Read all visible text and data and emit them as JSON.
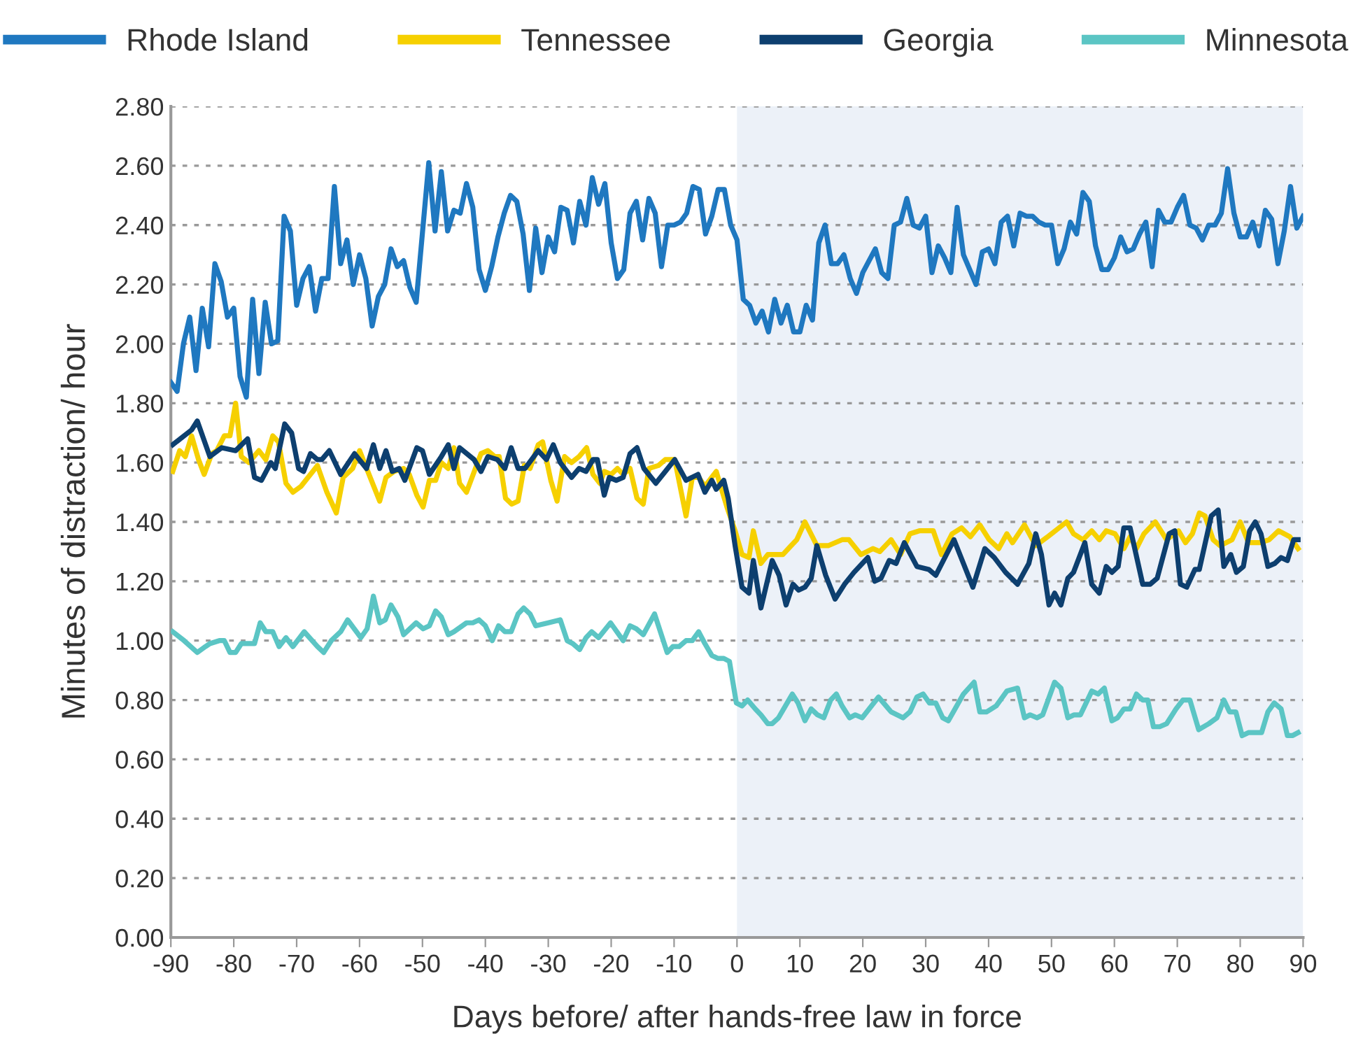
{
  "chart_data": {
    "type": "line",
    "xlabel": "Days before/ after hands-free law in force",
    "ylabel": "Minutes of distraction/ hour",
    "xlim": [
      -90,
      90
    ],
    "xticks": [
      -90,
      -80,
      -70,
      -60,
      -50,
      -40,
      -30,
      -20,
      -10,
      0,
      10,
      20,
      30,
      40,
      50,
      60,
      70,
      80,
      90
    ],
    "ylim": [
      0,
      2.8
    ],
    "yticks": [
      {
        "value": 0,
        "label": "0.00"
      },
      {
        "value": 0.2,
        "label": "0.20"
      },
      {
        "value": 0.4,
        "label": "0.40"
      },
      {
        "value": 0.6,
        "label": "0.60"
      },
      {
        "value": 0.8,
        "label": "0.80"
      },
      {
        "value": 1.0,
        "label": "1.00"
      },
      {
        "value": 1.2,
        "label": "1.20"
      },
      {
        "value": 1.4,
        "label": "1.40"
      },
      {
        "value": 1.6,
        "label": "1.60"
      },
      {
        "value": 1.8,
        "label": "1.80"
      },
      {
        "value": 2.0,
        "label": "2.00"
      },
      {
        "value": 2.2,
        "label": "2.20"
      },
      {
        "value": 2.4,
        "label": "2.40"
      },
      {
        "value": 2.6,
        "label": "2.60"
      },
      {
        "value": 2.8,
        "label": "2.80"
      }
    ],
    "grid": "y",
    "legend": "top",
    "marker": "none",
    "line_style": "solid",
    "bands": [
      {
        "axis": "x",
        "from": 0,
        "to": 90,
        "color": "#ecf1f8"
      }
    ],
    "series": [
      {
        "name": "Rhode Island",
        "color": "#1f78c0",
        "x": [
          -90,
          -89,
          -88,
          -87,
          -86,
          -85,
          -84,
          -83,
          -82,
          -81,
          -80,
          -79,
          -78,
          -77,
          -76,
          -75,
          -74,
          -73,
          -72,
          -71,
          -70,
          -69,
          -68,
          -67,
          -66,
          -65,
          -64,
          -63,
          -62,
          -61,
          -60,
          -59,
          -58,
          -57,
          -56,
          -55,
          -54,
          -53,
          -52,
          -51,
          -49,
          -48,
          -47,
          -46,
          -45,
          -44,
          -43,
          -42,
          -41,
          -40,
          -39,
          -38,
          -37,
          -36,
          -35,
          -34,
          -33,
          -32,
          -31,
          -30,
          -29,
          -28,
          -27,
          -26,
          -25,
          -24,
          -23,
          -22,
          -21,
          -20,
          -19,
          -18,
          -17,
          -16,
          -15,
          -14,
          -13,
          -12,
          -11,
          -10,
          -9,
          -8,
          -7,
          -6,
          -5,
          -4,
          -3,
          -2,
          -1,
          0,
          1,
          2,
          3,
          4,
          5,
          6,
          7,
          8,
          9,
          10,
          11,
          12,
          13,
          14,
          15,
          16,
          17,
          18,
          19,
          20,
          21,
          22,
          23,
          24,
          25,
          26,
          27,
          28,
          29,
          30,
          31,
          32,
          33,
          34,
          35,
          36,
          37,
          38,
          39,
          40,
          41,
          42,
          43,
          44,
          45,
          46,
          47,
          48,
          49,
          50,
          51,
          52,
          53,
          54,
          55,
          56,
          57,
          58,
          59,
          60,
          61,
          62,
          63,
          64,
          65,
          66,
          67,
          68,
          69,
          70,
          71,
          72,
          73,
          74,
          75,
          76,
          77,
          78,
          79,
          80,
          81,
          82,
          83,
          84,
          85,
          86,
          87,
          88,
          89,
          90
        ],
        "values": [
          1.87,
          1.84,
          2.0,
          2.09,
          1.91,
          2.12,
          1.99,
          2.27,
          2.21,
          2.09,
          2.12,
          1.89,
          1.82,
          2.15,
          1.9,
          2.14,
          2.0,
          2.01,
          2.43,
          2.38,
          2.13,
          2.22,
          2.26,
          2.11,
          2.22,
          2.22,
          2.53,
          2.27,
          2.35,
          2.2,
          2.3,
          2.22,
          2.06,
          2.16,
          2.2,
          2.32,
          2.26,
          2.28,
          2.19,
          2.14,
          2.61,
          2.38,
          2.58,
          2.38,
          2.45,
          2.44,
          2.54,
          2.46,
          2.25,
          2.18,
          2.26,
          2.36,
          2.44,
          2.5,
          2.48,
          2.37,
          2.18,
          2.39,
          2.24,
          2.36,
          2.31,
          2.46,
          2.45,
          2.34,
          2.48,
          2.4,
          2.56,
          2.47,
          2.54,
          2.34,
          2.22,
          2.25,
          2.44,
          2.48,
          2.35,
          2.49,
          2.44,
          2.26,
          2.4,
          2.4,
          2.41,
          2.44,
          2.53,
          2.52,
          2.37,
          2.43,
          2.52,
          2.52,
          2.4,
          2.35,
          2.15,
          2.13,
          2.07,
          2.11,
          2.04,
          2.15,
          2.07,
          2.13,
          2.04,
          2.04,
          2.13,
          2.08,
          2.34,
          2.4,
          2.27,
          2.27,
          2.3,
          2.22,
          2.17,
          2.24,
          2.28,
          2.32,
          2.24,
          2.22,
          2.4,
          2.41,
          2.49,
          2.4,
          2.39,
          2.43,
          2.24,
          2.33,
          2.29,
          2.24,
          2.46,
          2.3,
          2.25,
          2.2,
          2.31,
          2.32,
          2.27,
          2.41,
          2.43,
          2.33,
          2.44,
          2.43,
          2.43,
          2.41,
          2.4,
          2.4,
          2.27,
          2.32,
          2.41,
          2.37,
          2.51,
          2.48,
          2.33,
          2.25,
          2.25,
          2.29,
          2.36,
          2.31,
          2.32,
          2.37,
          2.41,
          2.26,
          2.45,
          2.41,
          2.41,
          2.46,
          2.5,
          2.4,
          2.39,
          2.35,
          2.4,
          2.4,
          2.44,
          2.59,
          2.44,
          2.36,
          2.36,
          2.41,
          2.33,
          2.45,
          2.42,
          2.27,
          2.38,
          2.53,
          2.39,
          2.43
        ]
      },
      {
        "name": "Tennessee",
        "color": "#f6d000",
        "x": [
          -89.7,
          -88.6,
          -87.7,
          -86.7,
          -85.6,
          -84.7,
          -83.5,
          -82.7,
          -81.5,
          -80.6,
          -79.7,
          -78.8,
          -77.6,
          -76.0,
          -74.9,
          -73.8,
          -72.9,
          -71.7,
          -70.6,
          -69.3,
          -66.7,
          -65.2,
          -63.7,
          -62.6,
          -61.1,
          -60.0,
          -58.5,
          -56.8,
          -55.8,
          -54.5,
          -53.0,
          -52.1,
          -50.9,
          -49.9,
          -48.9,
          -47.9,
          -47.0,
          -45.9,
          -45.0,
          -44.1,
          -43.0,
          -40.7,
          -39.6,
          -38.5,
          -37.8,
          -36.8,
          -35.8,
          -34.8,
          -33.8,
          -32.9,
          -31.6,
          -30.9,
          -29.6,
          -28.6,
          -27.4,
          -26.3,
          -25.1,
          -23.9,
          -22.9,
          -21.8,
          -21.1,
          -20.0,
          -19.0,
          -18.1,
          -17.0,
          -15.9,
          -14.9,
          -14.0,
          -12.5,
          -11.4,
          -9.9,
          -8.1,
          -7.1,
          -6.1,
          -5.1,
          -3.3,
          -1.6,
          -0.3,
          0.8,
          1.9,
          2.6,
          3.8,
          4.9,
          6.0,
          7.3,
          8.6,
          9.5,
          10.8,
          12.7,
          14.5,
          16.7,
          17.8,
          19.7,
          21.6,
          22.7,
          24.5,
          26.0,
          27.5,
          29.0,
          31.2,
          32.5,
          34.2,
          35.7,
          37.1,
          38.6,
          40.1,
          41.6,
          42.9,
          43.8,
          45.7,
          47.5,
          49.4,
          51.2,
          52.4,
          53.5,
          55.0,
          56.4,
          57.6,
          58.7,
          60.1,
          61.5,
          62.5,
          63.5,
          64.7,
          66.5,
          68.3,
          70.2,
          71.3,
          72.4,
          73.5,
          74.4,
          75.7,
          76.8,
          78.7,
          80.0,
          81.3,
          83.1,
          84.6,
          86.1,
          87.9,
          89.2
        ],
        "values": [
          1.57,
          1.64,
          1.62,
          1.69,
          1.61,
          1.56,
          1.63,
          1.64,
          1.69,
          1.69,
          1.8,
          1.62,
          1.6,
          1.64,
          1.61,
          1.69,
          1.67,
          1.53,
          1.5,
          1.52,
          1.59,
          1.5,
          1.43,
          1.55,
          1.58,
          1.64,
          1.56,
          1.47,
          1.55,
          1.57,
          1.58,
          1.56,
          1.49,
          1.45,
          1.54,
          1.54,
          1.6,
          1.58,
          1.65,
          1.53,
          1.5,
          1.63,
          1.64,
          1.62,
          1.62,
          1.48,
          1.46,
          1.47,
          1.59,
          1.58,
          1.66,
          1.67,
          1.54,
          1.47,
          1.62,
          1.6,
          1.62,
          1.65,
          1.56,
          1.53,
          1.57,
          1.56,
          1.58,
          1.56,
          1.58,
          1.48,
          1.46,
          1.58,
          1.59,
          1.61,
          1.61,
          1.42,
          1.55,
          1.55,
          1.52,
          1.57,
          1.45,
          1.37,
          1.29,
          1.28,
          1.37,
          1.26,
          1.29,
          1.29,
          1.29,
          1.32,
          1.34,
          1.4,
          1.32,
          1.32,
          1.34,
          1.34,
          1.29,
          1.31,
          1.3,
          1.34,
          1.29,
          1.36,
          1.37,
          1.37,
          1.29,
          1.36,
          1.38,
          1.35,
          1.39,
          1.34,
          1.31,
          1.36,
          1.33,
          1.39,
          1.32,
          1.35,
          1.38,
          1.4,
          1.36,
          1.34,
          1.37,
          1.34,
          1.37,
          1.36,
          1.31,
          1.35,
          1.31,
          1.36,
          1.4,
          1.34,
          1.37,
          1.33,
          1.36,
          1.43,
          1.42,
          1.34,
          1.32,
          1.34,
          1.4,
          1.33,
          1.33,
          1.34,
          1.37,
          1.35,
          1.31
        ]
      },
      {
        "name": "Georgia",
        "color": "#0d3f6f",
        "x": [
          -89.7,
          -86.7,
          -85.8,
          -83.8,
          -81.9,
          -79.7,
          -77.8,
          -76.7,
          -75.6,
          -74.1,
          -73.4,
          -71.9,
          -70.8,
          -69.7,
          -68.9,
          -67.8,
          -66.7,
          -66.0,
          -64.8,
          -63.0,
          -60.8,
          -58.9,
          -57.8,
          -56.8,
          -55.8,
          -54.8,
          -53.7,
          -52.8,
          -50.9,
          -50.0,
          -48.9,
          -47.0,
          -45.9,
          -45.0,
          -44.1,
          -41.8,
          -40.7,
          -39.6,
          -38.1,
          -36.9,
          -35.9,
          -34.8,
          -33.7,
          -31.6,
          -30.3,
          -29.2,
          -28.1,
          -26.3,
          -25.1,
          -24.0,
          -22.9,
          -22.2,
          -21.1,
          -20.3,
          -19.2,
          -18.1,
          -17.0,
          -15.9,
          -14.8,
          -12.9,
          -11.4,
          -9.9,
          -8.1,
          -6.2,
          -5.1,
          -4.0,
          -3.3,
          -2.1,
          -1.4,
          -0.3,
          0.8,
          1.9,
          2.6,
          3.8,
          5.6,
          6.7,
          7.8,
          8.9,
          9.8,
          10.8,
          11.8,
          12.7,
          14.1,
          15.6,
          17.1,
          18.6,
          20.8,
          21.9,
          22.9,
          24.2,
          25.3,
          26.6,
          28.6,
          30.5,
          31.6,
          34.5,
          37.5,
          39.4,
          40.9,
          42.7,
          44.6,
          46.4,
          47.5,
          48.4,
          49.6,
          50.5,
          51.5,
          52.6,
          53.5,
          55.3,
          56.4,
          57.6,
          58.7,
          59.6,
          60.6,
          61.5,
          62.5,
          64.5,
          65.7,
          66.8,
          68.7,
          69.6,
          70.5,
          71.5,
          72.8,
          73.5,
          75.4,
          76.5,
          77.4,
          78.5,
          79.4,
          80.5,
          81.5,
          82.4,
          83.3,
          84.4,
          85.5,
          86.5,
          87.5,
          88.5,
          89.2
        ],
        "values": [
          1.66,
          1.71,
          1.74,
          1.62,
          1.65,
          1.64,
          1.68,
          1.55,
          1.54,
          1.6,
          1.58,
          1.73,
          1.7,
          1.58,
          1.57,
          1.63,
          1.61,
          1.61,
          1.64,
          1.56,
          1.63,
          1.58,
          1.66,
          1.58,
          1.64,
          1.57,
          1.58,
          1.54,
          1.65,
          1.64,
          1.56,
          1.62,
          1.66,
          1.58,
          1.65,
          1.61,
          1.57,
          1.62,
          1.61,
          1.58,
          1.65,
          1.58,
          1.58,
          1.64,
          1.61,
          1.66,
          1.6,
          1.55,
          1.58,
          1.57,
          1.61,
          1.61,
          1.49,
          1.55,
          1.54,
          1.55,
          1.63,
          1.65,
          1.58,
          1.53,
          1.57,
          1.61,
          1.54,
          1.56,
          1.5,
          1.54,
          1.51,
          1.54,
          1.48,
          1.32,
          1.18,
          1.16,
          1.27,
          1.11,
          1.27,
          1.22,
          1.12,
          1.19,
          1.17,
          1.18,
          1.21,
          1.32,
          1.22,
          1.14,
          1.19,
          1.23,
          1.28,
          1.2,
          1.21,
          1.27,
          1.26,
          1.33,
          1.25,
          1.24,
          1.22,
          1.34,
          1.18,
          1.31,
          1.28,
          1.23,
          1.19,
          1.26,
          1.36,
          1.29,
          1.12,
          1.16,
          1.12,
          1.21,
          1.23,
          1.33,
          1.19,
          1.16,
          1.25,
          1.23,
          1.25,
          1.38,
          1.38,
          1.19,
          1.19,
          1.21,
          1.36,
          1.37,
          1.19,
          1.18,
          1.24,
          1.24,
          1.42,
          1.44,
          1.25,
          1.29,
          1.23,
          1.25,
          1.37,
          1.4,
          1.36,
          1.25,
          1.26,
          1.28,
          1.27,
          1.34,
          1.34
        ]
      },
      {
        "name": "Minnesota",
        "color": "#5bc5c4",
        "x": [
          -89.7,
          -87.9,
          -85.8,
          -84.5,
          -83.8,
          -82.3,
          -81.5,
          -80.6,
          -79.7,
          -78.8,
          -76.7,
          -75.8,
          -74.9,
          -73.8,
          -72.8,
          -71.7,
          -70.6,
          -68.8,
          -66.7,
          -65.7,
          -64.5,
          -63.0,
          -61.9,
          -59.8,
          -58.8,
          -57.8,
          -56.8,
          -55.9,
          -55.0,
          -53.9,
          -53.0,
          -51.0,
          -49.9,
          -48.9,
          -47.9,
          -47.0,
          -45.9,
          -45.0,
          -43.0,
          -42.0,
          -41.0,
          -40.0,
          -38.9,
          -37.9,
          -36.9,
          -35.9,
          -34.8,
          -33.9,
          -32.9,
          -32.0,
          -30.0,
          -28.1,
          -27.0,
          -26.1,
          -25.0,
          -24.0,
          -23.1,
          -22.0,
          -20.1,
          -18.1,
          -17.0,
          -16.0,
          -14.9,
          -13.1,
          -11.1,
          -10.2,
          -9.2,
          -8.1,
          -7.1,
          -6.1,
          -5.1,
          -4.0,
          -3.0,
          -2.1,
          -1.2,
          -0.1,
          0.8,
          1.7,
          2.9,
          3.8,
          4.9,
          5.6,
          6.6,
          8.8,
          9.7,
          10.8,
          11.8,
          12.8,
          13.8,
          14.9,
          15.8,
          16.7,
          17.9,
          18.8,
          19.9,
          22.5,
          24.5,
          26.4,
          27.5,
          28.6,
          29.6,
          30.6,
          31.6,
          32.7,
          33.6,
          36.0,
          37.7,
          38.6,
          39.7,
          41.2,
          42.9,
          44.6,
          45.7,
          46.6,
          47.7,
          48.6,
          50.5,
          51.5,
          52.6,
          53.6,
          54.6,
          56.4,
          57.4,
          58.4,
          59.6,
          60.5,
          61.5,
          62.5,
          63.5,
          64.5,
          65.3,
          66.2,
          67.2,
          68.3,
          69.8,
          70.9,
          72.0,
          73.4,
          75.0,
          76.3,
          77.4,
          78.3,
          79.3,
          80.3,
          81.3,
          82.4,
          83.4,
          84.4,
          85.4,
          86.5,
          87.5,
          88.3,
          89.2
        ],
        "values": [
          1.03,
          1.0,
          0.96,
          0.98,
          0.99,
          1.0,
          1.0,
          0.96,
          0.96,
          0.99,
          0.99,
          1.06,
          1.03,
          1.03,
          0.98,
          1.01,
          0.98,
          1.03,
          0.98,
          0.96,
          1.0,
          1.03,
          1.07,
          1.01,
          1.04,
          1.15,
          1.06,
          1.07,
          1.12,
          1.08,
          1.02,
          1.06,
          1.04,
          1.05,
          1.1,
          1.08,
          1.02,
          1.03,
          1.06,
          1.06,
          1.07,
          1.05,
          1.0,
          1.05,
          1.03,
          1.03,
          1.09,
          1.11,
          1.09,
          1.05,
          1.06,
          1.07,
          1.0,
          0.99,
          0.97,
          1.01,
          1.03,
          1.01,
          1.06,
          1.0,
          1.05,
          1.04,
          1.02,
          1.09,
          0.96,
          0.98,
          0.98,
          1.0,
          1.0,
          1.03,
          0.99,
          0.95,
          0.94,
          0.94,
          0.93,
          0.79,
          0.78,
          0.8,
          0.77,
          0.75,
          0.72,
          0.72,
          0.74,
          0.82,
          0.79,
          0.73,
          0.77,
          0.75,
          0.74,
          0.8,
          0.82,
          0.78,
          0.74,
          0.75,
          0.74,
          0.81,
          0.76,
          0.74,
          0.76,
          0.81,
          0.82,
          0.79,
          0.79,
          0.74,
          0.73,
          0.82,
          0.86,
          0.76,
          0.76,
          0.78,
          0.83,
          0.84,
          0.74,
          0.75,
          0.74,
          0.75,
          0.86,
          0.84,
          0.74,
          0.75,
          0.75,
          0.83,
          0.82,
          0.84,
          0.73,
          0.74,
          0.77,
          0.77,
          0.82,
          0.8,
          0.8,
          0.71,
          0.71,
          0.72,
          0.77,
          0.8,
          0.8,
          0.7,
          0.72,
          0.74,
          0.8,
          0.76,
          0.76,
          0.68,
          0.69,
          0.69,
          0.69,
          0.76,
          0.79,
          0.77,
          0.68,
          0.68,
          0.69
        ]
      }
    ]
  }
}
